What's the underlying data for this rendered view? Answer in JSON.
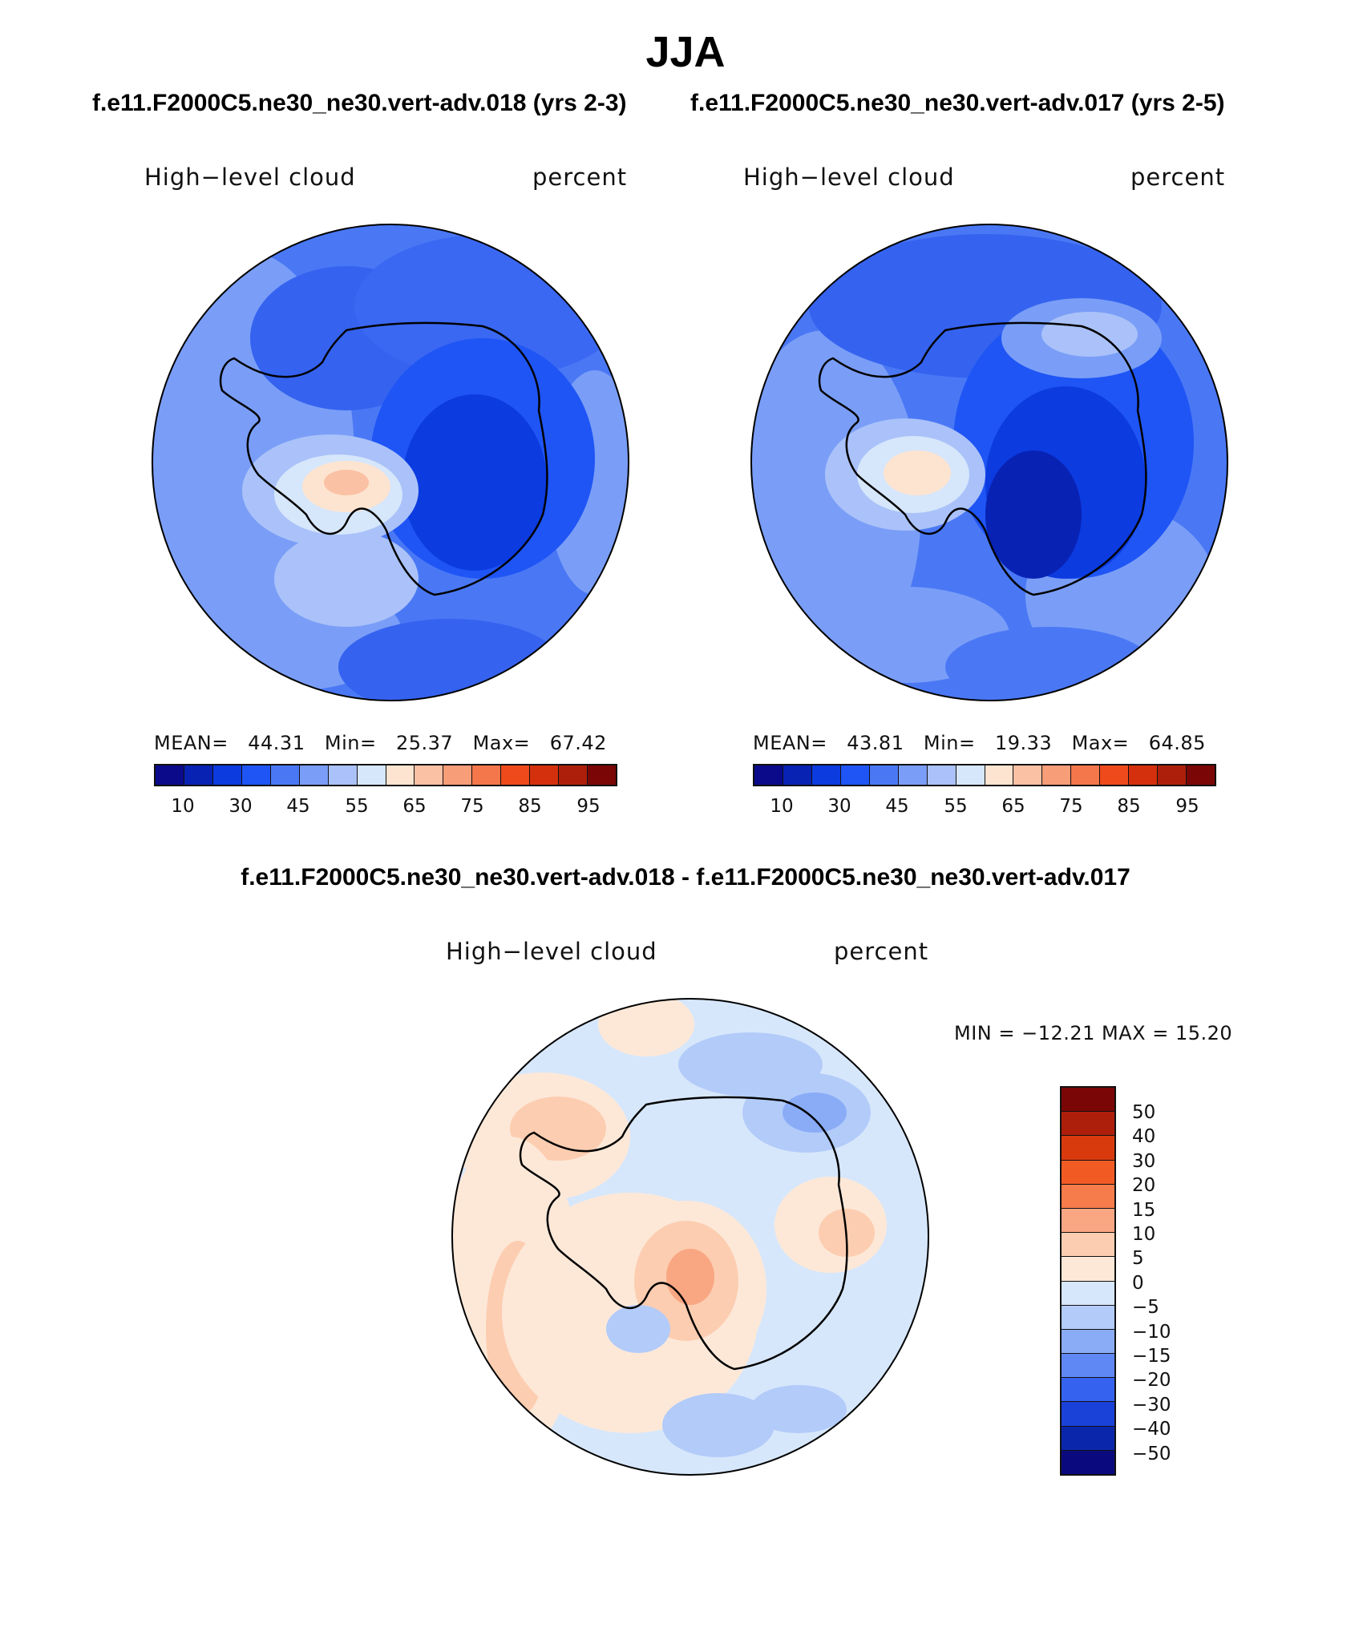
{
  "season": "JJA",
  "panels": [
    {
      "case_title": "f.e11.F2000C5.ne30_ne30.vert-adv.018 (yrs 2-3)",
      "variable": "High−level cloud",
      "units": "percent",
      "mean_label": "MEAN=",
      "mean": "44.31",
      "min_label": "Min=",
      "min": "25.37",
      "max_label": "Max=",
      "max": "67.42"
    },
    {
      "case_title": "f.e11.F2000C5.ne30_ne30.vert-adv.017 (yrs 2-5)",
      "variable": "High−level cloud",
      "units": "percent",
      "mean_label": "MEAN=",
      "mean": "43.81",
      "min_label": "Min=",
      "min": "19.33",
      "max_label": "Max=",
      "max": "64.85"
    }
  ],
  "abs_colorbar": {
    "tick_labels": [
      "10",
      "30",
      "45",
      "55",
      "65",
      "75",
      "85",
      "95"
    ],
    "colors": [
      "#0a0a8a",
      "#0822b4",
      "#0c3be0",
      "#1f55f5",
      "#4a78f5",
      "#7a9ef7",
      "#aac2f9",
      "#d6e6fb",
      "#fde4d0",
      "#fbc1a4",
      "#f79d78",
      "#f4764b",
      "#ee4a1c",
      "#d4300d",
      "#ae1f0b",
      "#7a0606"
    ]
  },
  "diff": {
    "title": "f.e11.F2000C5.ne30_ne30.vert-adv.018 - f.e11.F2000C5.ne30_ne30.vert-adv.017",
    "variable": "High−level cloud",
    "units": "percent",
    "minmax_text": "MIN = −12.21 MAX =  15.20",
    "tick_labels": [
      "50",
      "40",
      "30",
      "20",
      "15",
      "10",
      "5",
      "0",
      "−5",
      "−10",
      "−15",
      "−20",
      "−30",
      "−40",
      "−50"
    ],
    "colors": [
      "#7a0606",
      "#ae1f0b",
      "#d83a0e",
      "#f25a24",
      "#f77c4b",
      "#f9a682",
      "#fccdb0",
      "#fde8d8",
      "#d7e7fb",
      "#b2cbf9",
      "#8aacf7",
      "#5f88f5",
      "#3563f0",
      "#1a42d8",
      "#0a27ab",
      "#0a0a7e"
    ]
  },
  "chart_data": [
    {
      "type": "map",
      "projection": "south polar stereographic",
      "title": "High-level cloud (018, yrs 2-3)",
      "units": "percent",
      "levels": [
        10,
        20,
        30,
        40,
        45,
        50,
        55,
        60,
        65,
        70,
        75,
        80,
        85,
        90,
        95
      ],
      "mean": 44.31,
      "min": 25.37,
      "max": 67.42
    },
    {
      "type": "map",
      "projection": "south polar stereographic",
      "title": "High-level cloud (017, yrs 2-5)",
      "units": "percent",
      "levels": [
        10,
        20,
        30,
        40,
        45,
        50,
        55,
        60,
        65,
        70,
        75,
        80,
        85,
        90,
        95
      ],
      "mean": 43.81,
      "min": 19.33,
      "max": 64.85
    },
    {
      "type": "map",
      "projection": "south polar stereographic",
      "title": "Difference 018 - 017",
      "units": "percent",
      "levels": [
        -50,
        -40,
        -30,
        -20,
        -15,
        -10,
        -5,
        0,
        5,
        10,
        15,
        20,
        30,
        40,
        50
      ],
      "min": -12.21,
      "max": 15.2
    }
  ]
}
